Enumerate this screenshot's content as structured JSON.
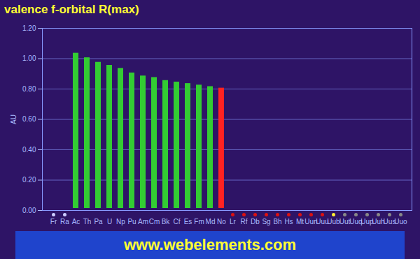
{
  "chart_data": {
    "type": "bar",
    "title": "valence f-orbital R(max)",
    "y_label": "AU",
    "footer": "www.webelements.com",
    "categories": [
      "Fr",
      "Ra",
      "Ac",
      "Th",
      "Pa",
      "U",
      "Np",
      "Pu",
      "Am",
      "Cm",
      "Bk",
      "Cf",
      "Es",
      "Fm",
      "Md",
      "No",
      "Lr",
      "Rf",
      "Db",
      "Sg",
      "Bh",
      "Hs",
      "Mt",
      "Uun",
      "Uuu",
      "Uub",
      "Uut",
      "Uuq",
      "Uup",
      "Uuh",
      "Uus",
      "Uuo"
    ],
    "values": [
      null,
      null,
      1.05,
      1.02,
      0.99,
      0.97,
      0.95,
      0.92,
      0.9,
      0.89,
      0.87,
      0.86,
      0.85,
      0.84,
      0.83,
      0.82,
      null,
      null,
      null,
      null,
      null,
      null,
      null,
      null,
      null,
      null,
      null,
      null,
      null,
      null,
      null,
      null
    ],
    "colors": [
      "#ccccff",
      "#ccccff",
      "#33cc33",
      "#33cc33",
      "#33cc33",
      "#33cc33",
      "#33cc33",
      "#33cc33",
      "#33cc33",
      "#33cc33",
      "#33cc33",
      "#33cc33",
      "#33cc33",
      "#33cc33",
      "#33cc33",
      "#ff2222",
      "#dd1111",
      "#dd1111",
      "#dd1111",
      "#dd1111",
      "#dd1111",
      "#dd1111",
      "#dd1111",
      "#dd1111",
      "#dd1111",
      "#ffee33",
      "#888888",
      "#888888",
      "#888888",
      "#888888",
      "#888888",
      "#888888"
    ],
    "ylim": [
      0,
      1.2
    ],
    "yticks": [
      {
        "value": 0,
        "label": "0.00"
      },
      {
        "value": 0.2,
        "label": "0.20"
      },
      {
        "value": 0.4,
        "label": "0.40"
      },
      {
        "value": 0.6,
        "label": "0.60"
      },
      {
        "value": 0.8,
        "label": "0.80"
      },
      {
        "value": 1,
        "label": "1.00"
      },
      {
        "value": 1.2,
        "label": "1.20"
      }
    ],
    "grid": true
  }
}
